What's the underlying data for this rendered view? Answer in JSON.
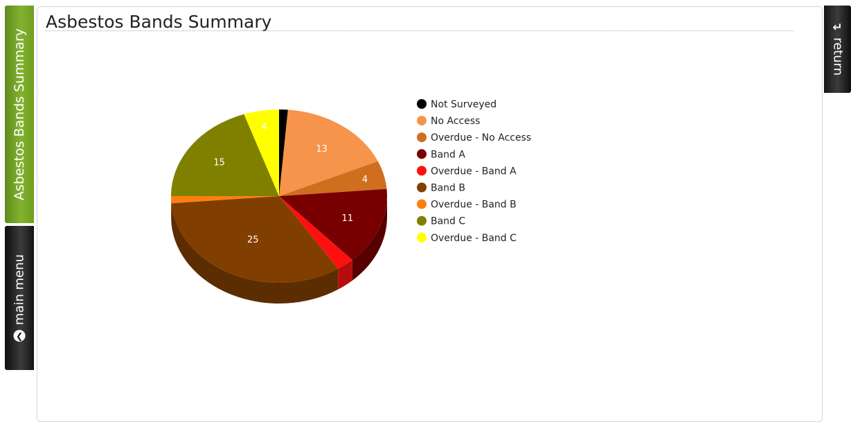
{
  "sidebar": {
    "summary_tab": "Asbestos Bands Summary",
    "menu_tab": "main menu",
    "menu_icon": "circle-arrow-icon"
  },
  "return_tab": {
    "label": "return",
    "icon": "return-arrow-icon"
  },
  "page": {
    "title": "Asbestos Bands Summary"
  },
  "chart_data": {
    "type": "pie",
    "title": "",
    "legend_position": "right",
    "slices": [
      {
        "label": "Not Surveyed",
        "value": 1,
        "color": "#000000",
        "text_color": "#ffffff",
        "show_label": false
      },
      {
        "label": "No Access",
        "value": 13,
        "color": "#f5944a",
        "text_color": "#ffffff",
        "show_label": true
      },
      {
        "label": "Overdue - No Access",
        "value": 4,
        "color": "#d06e1f",
        "text_color": "#ffffff",
        "show_label": true
      },
      {
        "label": "Band A",
        "value": 11,
        "color": "#780000",
        "text_color": "#ffffff",
        "show_label": true
      },
      {
        "label": "Overdue - Band A",
        "value": 2,
        "color": "#ff1010",
        "text_color": "#ffffff",
        "show_label": false
      },
      {
        "label": "Band B",
        "value": 25,
        "color": "#803f00",
        "text_color": "#ffffff",
        "show_label": true
      },
      {
        "label": "Overdue - Band B",
        "value": 1,
        "color": "#ff7f0e",
        "text_color": "#ffffff",
        "show_label": false
      },
      {
        "label": "Band C",
        "value": 15,
        "color": "#808000",
        "text_color": "#ffffff",
        "show_label": true
      },
      {
        "label": "Overdue - Band C",
        "value": 4,
        "color": "#ffff00",
        "text_color": "#ffffff",
        "show_label": true
      }
    ]
  }
}
